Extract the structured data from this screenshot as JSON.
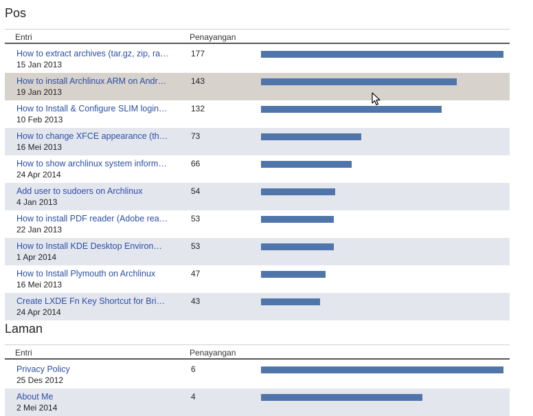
{
  "sections": [
    {
      "title": "Pos",
      "header": {
        "entry": "Entri",
        "views": "Penayangan"
      },
      "rows": [
        {
          "title": "How to extract archives (tar.gz, zip, rar, etc) on Archlinux",
          "date": "15 Jan 2013",
          "views": "177",
          "fraction": 1.0
        },
        {
          "title": "How to install Archlinux ARM on Android",
          "date": "19 Jan 2013",
          "views": "143",
          "fraction": 0.8079
        },
        {
          "title": "How to Install & Configure SLIM login manager",
          "date": "10 Feb 2013",
          "views": "132",
          "fraction": 0.7458
        },
        {
          "title": "How to change XFCE appearance (theme and icon)",
          "date": "16 Mei 2013",
          "views": "73",
          "fraction": 0.4124
        },
        {
          "title": "How to show archlinux system information",
          "date": "24 Apr 2014",
          "views": "66",
          "fraction": 0.3729
        },
        {
          "title": "Add user to sudoers on Archlinux",
          "date": "4 Jan 2013",
          "views": "54",
          "fraction": 0.3051
        },
        {
          "title": "How to install PDF reader (Adobe reader) on Archlinux",
          "date": "22 Jan 2013",
          "views": "53",
          "fraction": 0.2994
        },
        {
          "title": "How to Install KDE Desktop Environment on Archlinux",
          "date": "1 Apr 2014",
          "views": "53",
          "fraction": 0.2994
        },
        {
          "title": "How to Install Plymouth on Archlinux",
          "date": "16 Mei 2013",
          "views": "47",
          "fraction": 0.2655
        },
        {
          "title": "Create LXDE Fn Key Shortcut for Brightness",
          "date": "24 Apr 2014",
          "views": "43",
          "fraction": 0.2429
        }
      ]
    },
    {
      "title": "Laman",
      "header": {
        "entry": "Entri",
        "views": "Penayangan"
      },
      "rows": [
        {
          "title": "Privacy Policy",
          "date": "25 Des 2012",
          "views": "6",
          "fraction": 1.0
        },
        {
          "title": "About Me",
          "date": "2 Mei 2014",
          "views": "4",
          "fraction": 0.6667
        }
      ]
    }
  ],
  "colors": {
    "bar": "#4f75aa",
    "link": "#2a4ea5",
    "row_alt": "#e4e6ee",
    "row_hover": "#d8d2cc"
  },
  "icons": {
    "cursor": "mouse-pointer-icon"
  }
}
